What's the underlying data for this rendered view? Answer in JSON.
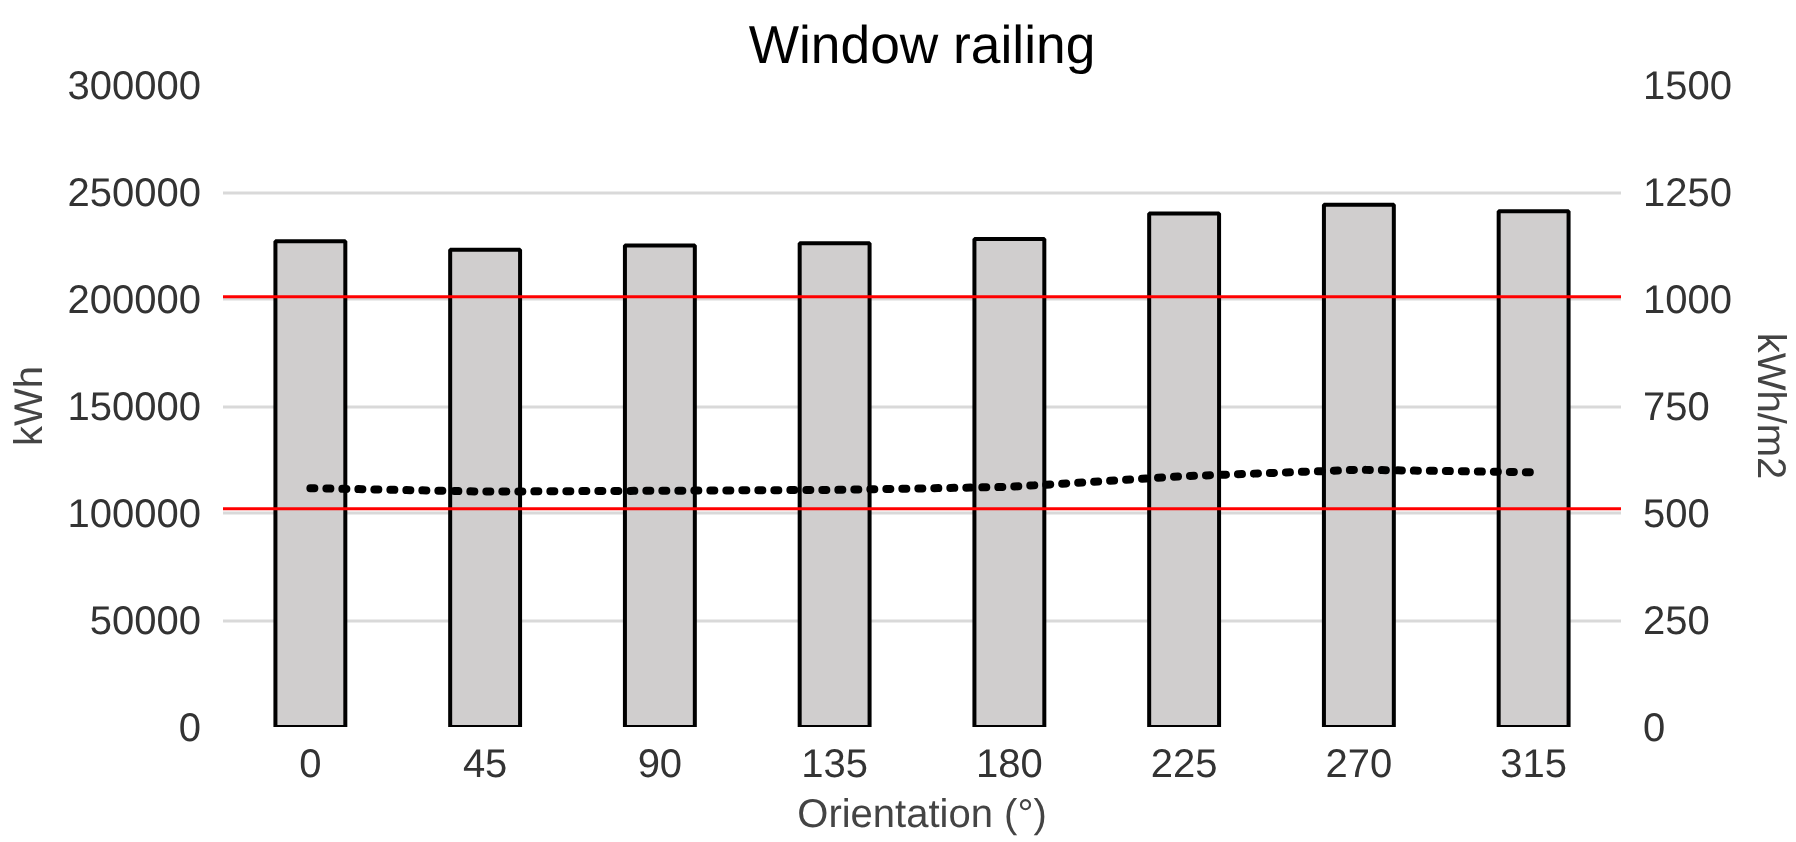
{
  "chart_data": {
    "type": "bar",
    "title": "Window railing",
    "xlabel": "Orientation (°)",
    "ylabel": "kWh",
    "y2label": "kWh/m2",
    "categories": [
      "0",
      "45",
      "90",
      "135",
      "180",
      "225",
      "270",
      "315"
    ],
    "series": [
      {
        "color": "#d0cece",
        "values": [
          227000,
          223000,
          225000,
          226000,
          228000,
          240000,
          244000,
          241000
        ]
      },
      {
        "type": "line",
        "axis": "y2",
        "color": "#000000",
        "line_style": "dotted",
        "values": [
          558,
          550,
          552,
          554,
          561,
          586,
          601,
          595
        ]
      }
    ],
    "ylim": [
      0,
      300000
    ],
    "yticks": [
      0,
      50000,
      100000,
      150000,
      200000,
      250000,
      300000
    ],
    "y2lim": [
      0,
      1500
    ],
    "y2ticks": [
      0,
      250,
      500,
      750,
      1000,
      1250,
      1500
    ],
    "ref_lines": [
      {
        "axis": "y",
        "value": 201000,
        "color": "#ff0000"
      },
      {
        "axis": "y",
        "value": 102000,
        "color": "#ff0000"
      }
    ],
    "grid": "y"
  }
}
